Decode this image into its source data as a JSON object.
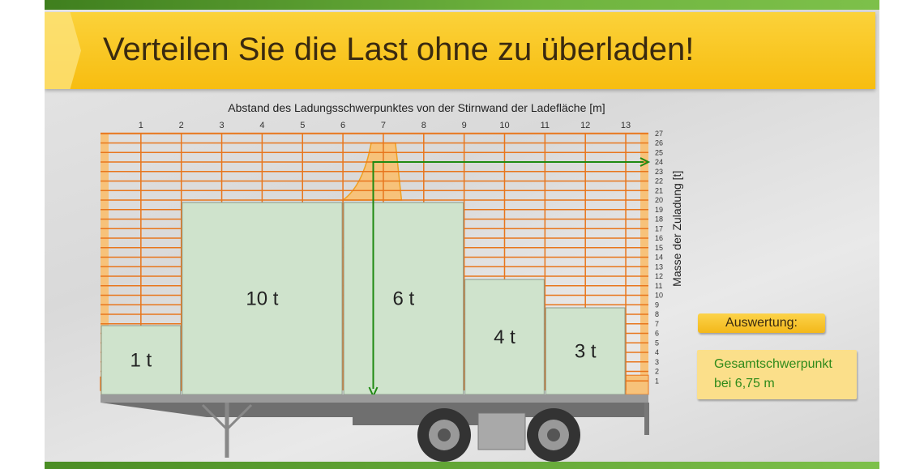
{
  "title": "Verteilen Sie die Last ohne zu überladen!",
  "chart": {
    "x_axis_label": "Abstand des Ladungsschwerpunktes von der Stirnwand der Ladefläche [m]",
    "y_axis_label": "Masse der Zuladung [t]",
    "x_ticks": [
      "1",
      "2",
      "3",
      "4",
      "5",
      "6",
      "7",
      "8",
      "9",
      "10",
      "11",
      "12",
      "13"
    ],
    "y_ticks": [
      "1",
      "2",
      "3",
      "4",
      "5",
      "6",
      "7",
      "8",
      "9",
      "10",
      "11",
      "12",
      "13",
      "14",
      "15",
      "16",
      "17",
      "18",
      "19",
      "20",
      "21",
      "22",
      "23",
      "24",
      "25",
      "26",
      "27"
    ],
    "center_of_gravity_m": 6.75,
    "total_mass_t": 24
  },
  "loads": [
    {
      "label": "1 t",
      "start_m": 0,
      "end_m": 2,
      "mass_t": 1
    },
    {
      "label": "10 t",
      "start_m": 2,
      "end_m": 6,
      "mass_t": 10
    },
    {
      "label": "6 t",
      "start_m": 6,
      "end_m": 9,
      "mass_t": 6
    },
    {
      "label": "4 t",
      "start_m": 9,
      "end_m": 11,
      "mass_t": 4
    },
    {
      "label": "3 t",
      "start_m": 11,
      "end_m": 13,
      "mass_t": 3
    }
  ],
  "evaluation": {
    "button": "Auswertung:",
    "line1": "Gesamtschwerpunkt",
    "line2": "bei 6,75 m"
  },
  "colors": {
    "grid": "#e8761c",
    "limit_fill": "#f7c27a",
    "box": "#cfe3cc",
    "arrow": "#1f8a12",
    "banner": "#f7bd10"
  }
}
